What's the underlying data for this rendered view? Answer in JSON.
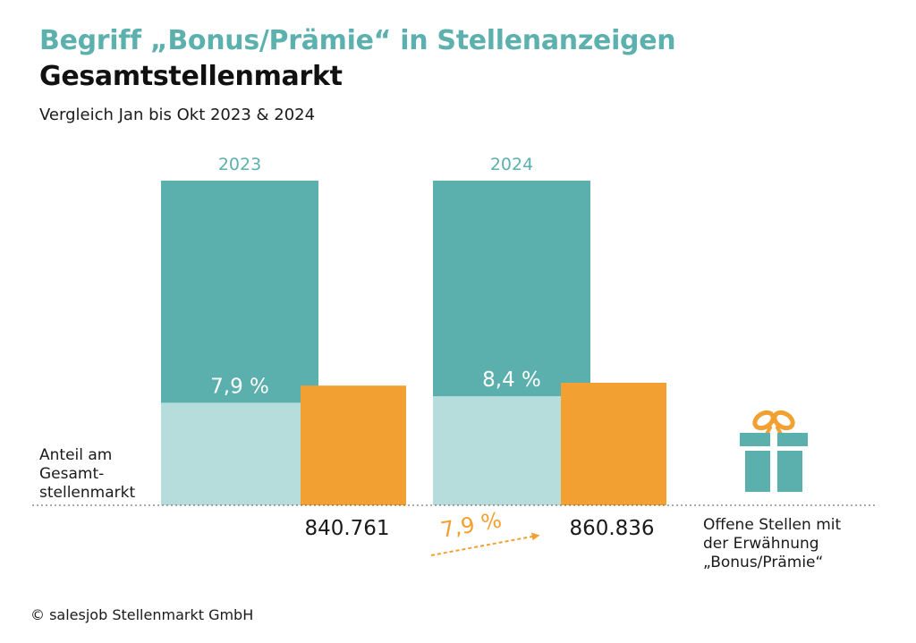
{
  "header": {
    "title": "Begriff „Bonus/Prämie“ in Stellenanzeigen",
    "subtitle": "Gesamtstellenmarkt",
    "comparison": "Vergleich Jan bis Okt 2023 & 2024"
  },
  "footer": {
    "copyright": "© salesjob Stellenmarkt GmbH"
  },
  "colors": {
    "total": "#5bafac",
    "share": "#b6dcdb",
    "bonus": "#f2a031",
    "title": "#5cb0ad"
  },
  "chart_data": {
    "type": "bar",
    "categories": [
      "2023",
      "2024"
    ],
    "share_percent_labels": [
      "7,9 %",
      "8,4 %"
    ],
    "share_fraction": [
      0.079,
      0.084
    ],
    "series": [
      {
        "name": "",
        "values": [
          1000000,
          1000000
        ]
      },
      {
        "name": "Offene Stellen mit der Erwähnung „Bonus/Prämie“",
        "values": [
          840761,
          860836
        ]
      }
    ],
    "value_labels": [
      "840.761",
      "860.836"
    ],
    "growth_label": "7,9 %",
    "left_annotation": [
      "Anteil am",
      "Gesamt-",
      "stellenmarkt"
    ],
    "legend_lines": [
      "Offene Stellen mit",
      "der Erwähnung",
      "„Bonus/Prämie“"
    ],
    "gift_icon": "gift-icon",
    "ylim": [
      0,
      1000000
    ]
  }
}
